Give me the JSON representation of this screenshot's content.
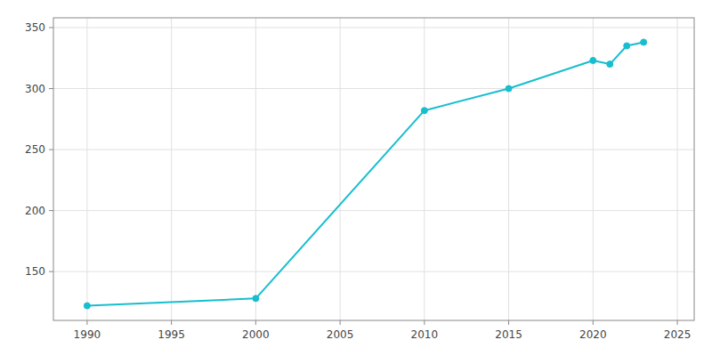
{
  "chart_data": {
    "type": "line",
    "x": [
      1990,
      2000,
      2010,
      2015,
      2020,
      2021,
      2022,
      2023
    ],
    "values": [
      122,
      128,
      282,
      300,
      323,
      320,
      335,
      338
    ],
    "color": "#17becf",
    "marker": "circle",
    "xlim": [
      1988,
      2026
    ],
    "ylim": [
      110,
      358
    ],
    "xticks": [
      1990,
      1995,
      2000,
      2005,
      2010,
      2015,
      2020,
      2025
    ],
    "yticks": [
      150,
      200,
      250,
      300,
      350
    ],
    "grid": true
  }
}
